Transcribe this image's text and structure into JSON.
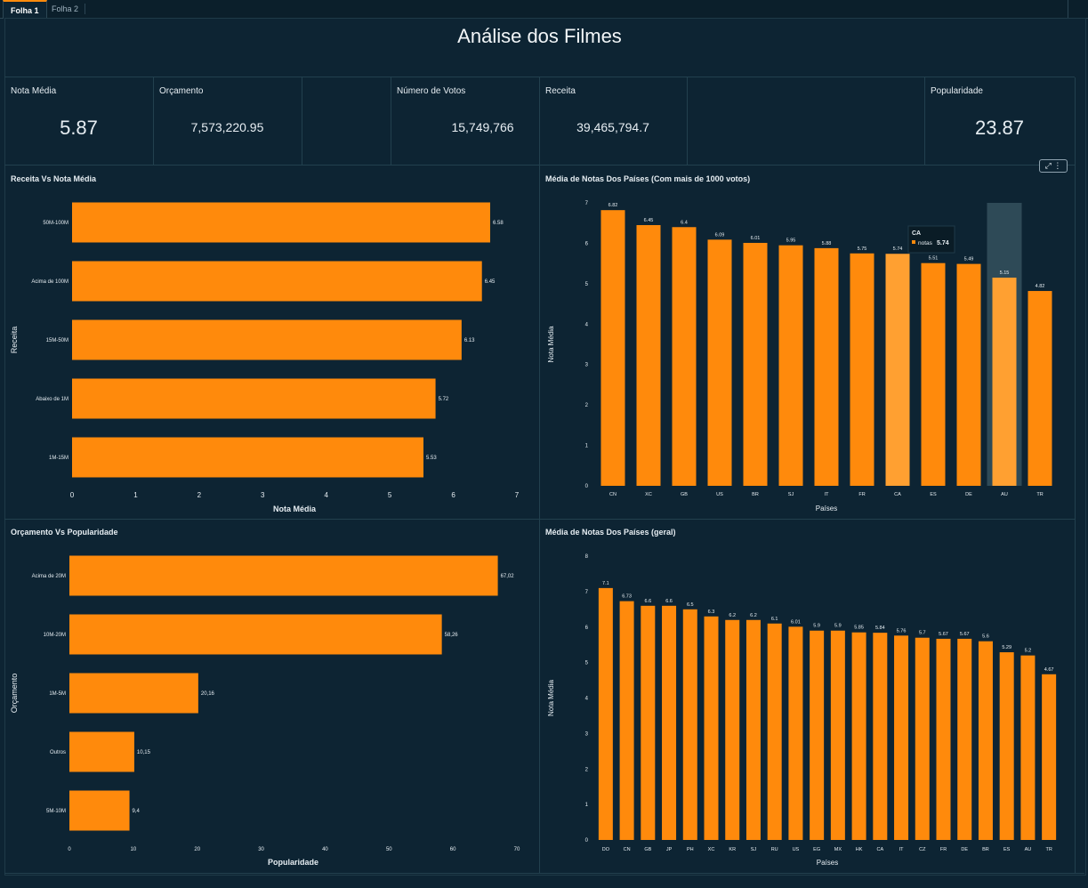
{
  "tabs": [
    {
      "label": "Folha 1",
      "active": true
    },
    {
      "label": "Folha 2",
      "active": false
    }
  ],
  "title": "Análise dos Filmes",
  "kpis": {
    "nota_media": {
      "label": "Nota Média",
      "value": "5.87"
    },
    "orcamento": {
      "label": "Orçamento",
      "value": "7,573,220.95"
    },
    "votos": {
      "label": "Número de Votos",
      "value": "15,749,766"
    },
    "receita": {
      "label": "Receita",
      "value": "39,465,794.7"
    },
    "popularidade": {
      "label": "Popularidade",
      "value": "23.87"
    }
  },
  "panel_icons": {
    "expand": "expand-icon",
    "menu": "more-vertical-icon"
  },
  "colors": {
    "bar": "#ff8a0c",
    "bar_highlight": "#ffa031",
    "background": "#0d2433"
  },
  "chart_data": [
    {
      "id": "receita",
      "type": "bar",
      "orientation": "horizontal",
      "title": "Receita Vs Nota Média",
      "xlabel": "Nota Média",
      "ylabel": "Receita",
      "xlim": [
        0,
        7
      ],
      "ticks": [
        0,
        1,
        2,
        3,
        4,
        5,
        6,
        7
      ],
      "categories": [
        "50M-100M",
        "Acima de 100M",
        "15M-50M",
        "Abaixo de 1M",
        "1M-15M"
      ],
      "values": [
        6.58,
        6.45,
        6.13,
        5.72,
        5.53
      ],
      "value_labels": [
        "6.58",
        "6.45",
        "6.13",
        "5.72",
        "5.53"
      ]
    },
    {
      "id": "orcamento",
      "type": "bar",
      "orientation": "horizontal",
      "title": "Orçamento Vs Popularidade",
      "xlabel": "Popularidade",
      "ylabel": "Orçamento",
      "xlim": [
        0,
        70
      ],
      "ticks": [
        0,
        10,
        20,
        30,
        40,
        50,
        60,
        70
      ],
      "categories": [
        "Acima de 20M",
        "10M-20M",
        "1M-5M",
        "Outros",
        "5M-10M"
      ],
      "values": [
        67.02,
        58.26,
        20.16,
        10.15,
        9.4
      ],
      "value_labels": [
        "67,02",
        "58,26",
        "20,16",
        "10,15",
        "9,4"
      ]
    },
    {
      "id": "paises1000",
      "type": "bar",
      "orientation": "vertical",
      "title": "Média de Notas Dos Países (Com mais de 1000 votos)",
      "xlabel": "Países",
      "ylabel": "Nota Média",
      "ylim": [
        0,
        7
      ],
      "ticks": [
        0,
        1,
        2,
        3,
        4,
        5,
        6,
        7
      ],
      "categories": [
        "CN",
        "XC",
        "GB",
        "US",
        "BR",
        "SJ",
        "IT",
        "FR",
        "CA",
        "ES",
        "DE",
        "AU",
        "TR"
      ],
      "values": [
        6.82,
        6.45,
        6.4,
        6.09,
        6.01,
        5.95,
        5.88,
        5.75,
        5.74,
        5.51,
        5.49,
        5.15,
        4.82
      ],
      "value_labels": [
        "6.82",
        "6.45",
        "6.4",
        "6.09",
        "6.01",
        "5.95",
        "5.88",
        "5.75",
        "5.74",
        "5.51",
        "5.49",
        "5.15",
        "4.82"
      ],
      "highlighted": "AU",
      "tooltip": {
        "category": "CA",
        "series": "notas",
        "value": "5.74"
      }
    },
    {
      "id": "paisesgeral",
      "type": "bar",
      "orientation": "vertical",
      "title": "Média de Notas Dos Países (geral)",
      "xlabel": "Países",
      "ylabel": "Nota Média",
      "ylim": [
        0,
        8
      ],
      "ticks": [
        0,
        1,
        2,
        3,
        4,
        5,
        6,
        7,
        8
      ],
      "categories": [
        "DO",
        "CN",
        "GB",
        "JP",
        "PH",
        "XC",
        "KR",
        "SJ",
        "RU",
        "US",
        "EG",
        "MX",
        "HK",
        "CA",
        "IT",
        "CZ",
        "FR",
        "DE",
        "BR",
        "ES",
        "AU",
        "TR"
      ],
      "values": [
        7.1,
        6.73,
        6.6,
        6.6,
        6.5,
        6.3,
        6.2,
        6.2,
        6.1,
        6.01,
        5.9,
        5.9,
        5.85,
        5.84,
        5.76,
        5.7,
        5.67,
        5.67,
        5.6,
        5.29,
        5.2,
        4.67
      ],
      "value_labels": [
        "7.1",
        "6.73",
        "6.6",
        "6.6",
        "6.5",
        "6.3",
        "6.2",
        "6.2",
        "6.1",
        "6.01",
        "5.9",
        "5.9",
        "5.85",
        "5.84",
        "5.76",
        "5.7",
        "5.67",
        "5.67",
        "5.6",
        "5.29",
        "5.2",
        "4.67"
      ]
    }
  ]
}
